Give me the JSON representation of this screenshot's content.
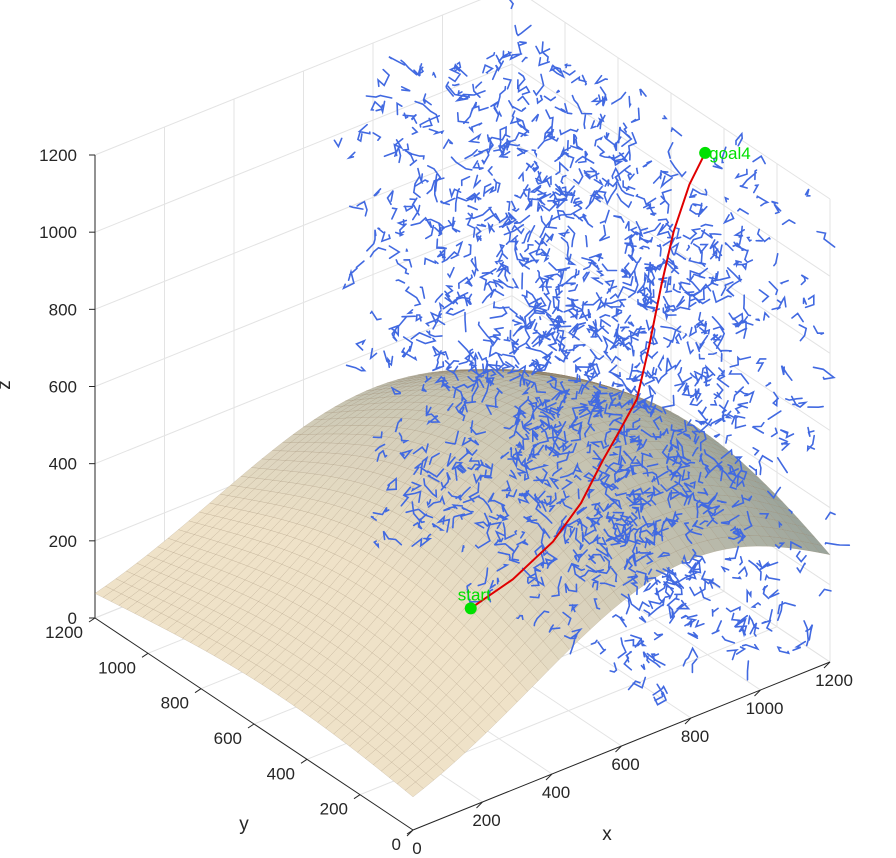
{
  "chart_data": {
    "type": "3d-surface-path",
    "axes": {
      "xlabel": "x",
      "ylabel": "y",
      "zlabel": "z",
      "xlim": [
        0,
        1200
      ],
      "ylim": [
        0,
        1200
      ],
      "zlim": [
        0,
        1200
      ],
      "xticks": [
        "0",
        "200",
        "400",
        "600",
        "800",
        "1000",
        "1200"
      ],
      "yticks": [
        "0",
        "200",
        "400",
        "600",
        "800",
        "1000",
        "1200"
      ],
      "zticks": [
        "0",
        "200",
        "400",
        "600",
        "800",
        "1000",
        "1200"
      ],
      "grid": true
    },
    "surface": {
      "description": "terrain ridge",
      "color_light": "#efe2c8",
      "color_dark": "#9aa39a",
      "edge_color": "#8b7355",
      "peak_z": 560
    },
    "tree": {
      "plane_x": 700,
      "x_range": [
        700,
        1200
      ],
      "y_range": [
        0,
        1200
      ],
      "z_range": [
        0,
        1200
      ],
      "color": "#4169e1"
    },
    "path": {
      "color": "#e00000",
      "points": [
        {
          "x": 700,
          "y": 700,
          "z": 0
        },
        {
          "x": 760,
          "y": 620,
          "z": 90
        },
        {
          "x": 830,
          "y": 560,
          "z": 190
        },
        {
          "x": 880,
          "y": 520,
          "z": 290
        },
        {
          "x": 920,
          "y": 490,
          "z": 400
        },
        {
          "x": 950,
          "y": 470,
          "z": 470
        },
        {
          "x": 980,
          "y": 440,
          "z": 560
        },
        {
          "x": 1000,
          "y": 420,
          "z": 700
        },
        {
          "x": 1020,
          "y": 400,
          "z": 860
        },
        {
          "x": 1040,
          "y": 380,
          "z": 1000
        },
        {
          "x": 1070,
          "y": 360,
          "z": 1120
        },
        {
          "x": 1100,
          "y": 340,
          "z": 1200
        }
      ]
    },
    "markers": [
      {
        "label": "start",
        "x": 700,
        "y": 700,
        "z": 0,
        "color": "#00e000"
      },
      {
        "label": "goal4",
        "x": 1100,
        "y": 340,
        "z": 1200,
        "color": "#00e000"
      }
    ]
  }
}
